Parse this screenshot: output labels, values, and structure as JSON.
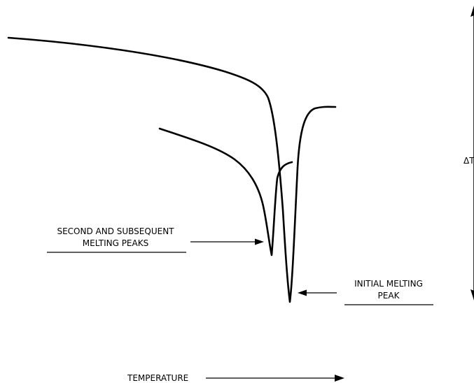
{
  "labels": {
    "second_line1": "SECOND AND SUBSEQUENT",
    "second_line2": "MELTING PEAKS",
    "initial_line1": "INITIAL MELTING",
    "initial_line2": "PEAK",
    "delta_t": "ΔT",
    "temperature": "TEMPERATURE"
  }
}
